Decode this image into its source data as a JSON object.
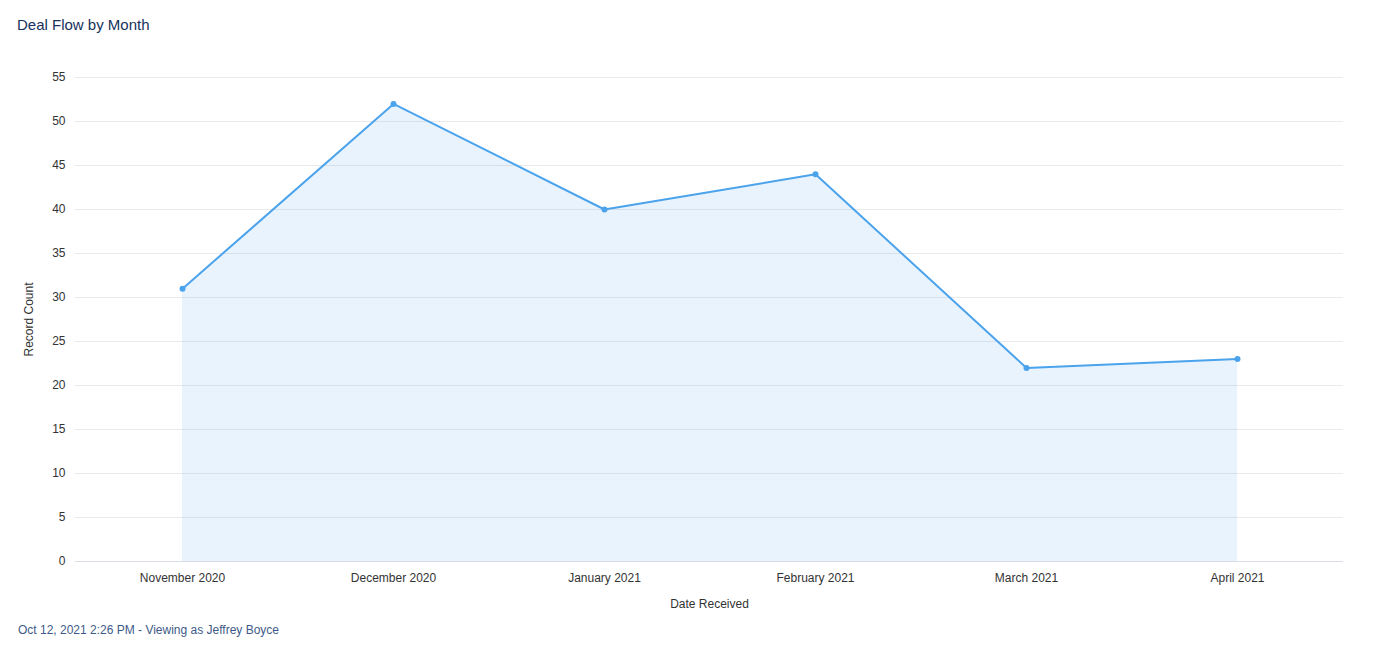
{
  "chart_data": {
    "type": "area",
    "title": "Deal Flow by Month",
    "x_label": "Date Received",
    "y_label": "Record Count",
    "caption": "Oct 12, 2021 2:26 PM - Viewing as Jeffrey Boyce",
    "categories": [
      "November 2020",
      "December 2020",
      "January 2021",
      "February 2021",
      "March 2021",
      "April 2021"
    ],
    "values": [
      31,
      52,
      40,
      44,
      22,
      23
    ],
    "color": "#4ba3ec",
    "marker": "circle",
    "ylim": [
      0,
      55
    ],
    "yticks": [
      0,
      5,
      10,
      15,
      20,
      25,
      30,
      35,
      40,
      45,
      50,
      55
    ],
    "grid": true
  }
}
